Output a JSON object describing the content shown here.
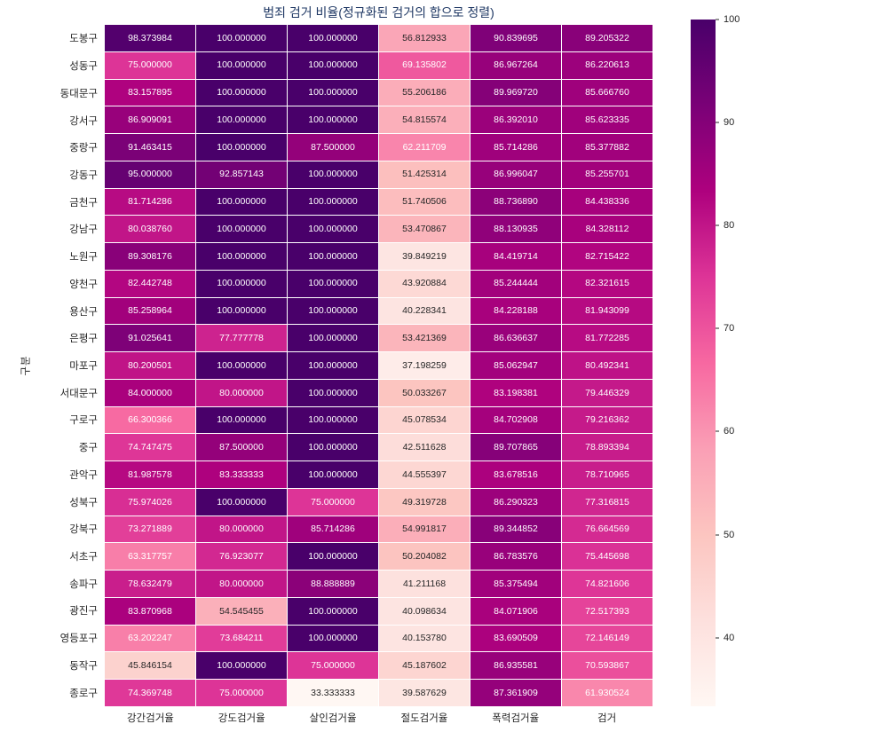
{
  "title": "범죄 검거 비율(정규화된 검거의 합으로 정렬)",
  "ylabel": "구분",
  "colors": {
    "title": "#1f3864",
    "annotation_dark": "#262626",
    "annotation_light": "#ffffff",
    "grid_line": "#ffffff",
    "colormap_stops": [
      "#fff7f3",
      "#fde0dd",
      "#fcc5c0",
      "#fa9fb5",
      "#f768a1",
      "#dd3497",
      "#ae017e",
      "#7a0177",
      "#49006a"
    ]
  },
  "chart_data": {
    "type": "heatmap",
    "title": "범죄 검거 비율(정규화된 검거의 합으로 정렬)",
    "xlabel": "",
    "ylabel": "구분",
    "colormap": "RdPu",
    "vmin": 33.333333,
    "vmax": 100,
    "annotation_decimals": 6,
    "legend_position": "right-colorbar",
    "colorbar_ticks": [
      40,
      50,
      60,
      70,
      80,
      90,
      100
    ],
    "columns": [
      "강간검거율",
      "강도검거율",
      "살인검거율",
      "절도검거율",
      "폭력검거율",
      "검거"
    ],
    "rows": [
      "도봉구",
      "성동구",
      "동대문구",
      "강서구",
      "중랑구",
      "강동구",
      "금천구",
      "강남구",
      "노원구",
      "양천구",
      "용산구",
      "은평구",
      "마포구",
      "서대문구",
      "구로구",
      "중구",
      "관악구",
      "성북구",
      "강북구",
      "서초구",
      "송파구",
      "광진구",
      "영등포구",
      "동작구",
      "종로구"
    ],
    "values": [
      [
        98.373984,
        100.0,
        100.0,
        56.812933,
        90.839695,
        89.205322
      ],
      [
        75.0,
        100.0,
        100.0,
        69.135802,
        86.967264,
        86.220613
      ],
      [
        83.157895,
        100.0,
        100.0,
        55.206186,
        89.96972,
        85.66676
      ],
      [
        86.909091,
        100.0,
        100.0,
        54.815574,
        86.39201,
        85.623335
      ],
      [
        91.463415,
        100.0,
        87.5,
        62.211709,
        85.714286,
        85.377882
      ],
      [
        95.0,
        92.857143,
        100.0,
        51.425314,
        86.996047,
        85.255701
      ],
      [
        81.714286,
        100.0,
        100.0,
        51.740506,
        88.73689,
        84.438336
      ],
      [
        80.03876,
        100.0,
        100.0,
        53.470867,
        88.130935,
        84.328112
      ],
      [
        89.308176,
        100.0,
        100.0,
        39.849219,
        84.419714,
        82.715422
      ],
      [
        82.442748,
        100.0,
        100.0,
        43.920884,
        85.244444,
        82.321615
      ],
      [
        85.258964,
        100.0,
        100.0,
        40.228341,
        84.228188,
        81.943099
      ],
      [
        91.025641,
        77.777778,
        100.0,
        53.421369,
        86.636637,
        81.772285
      ],
      [
        80.200501,
        100.0,
        100.0,
        37.198259,
        85.062947,
        80.492341
      ],
      [
        84.0,
        80.0,
        100.0,
        50.033267,
        83.198381,
        79.446329
      ],
      [
        66.300366,
        100.0,
        100.0,
        45.078534,
        84.702908,
        79.216362
      ],
      [
        74.747475,
        87.5,
        100.0,
        42.511628,
        89.707865,
        78.893394
      ],
      [
        81.987578,
        83.333333,
        100.0,
        44.555397,
        83.678516,
        78.710965
      ],
      [
        75.974026,
        100.0,
        75.0,
        49.319728,
        86.290323,
        77.316815
      ],
      [
        73.271889,
        80.0,
        85.714286,
        54.991817,
        89.344852,
        76.664569
      ],
      [
        63.317757,
        76.923077,
        100.0,
        50.204082,
        86.783576,
        75.445698
      ],
      [
        78.632479,
        80.0,
        88.888889,
        41.211168,
        85.375494,
        74.821606
      ],
      [
        83.870968,
        54.545455,
        100.0,
        40.098634,
        84.071906,
        72.517393
      ],
      [
        63.202247,
        73.684211,
        100.0,
        40.15378,
        83.690509,
        72.146149
      ],
      [
        45.846154,
        100.0,
        75.0,
        45.187602,
        86.935581,
        70.593867
      ],
      [
        74.369748,
        75.0,
        33.333333,
        39.587629,
        87.361909,
        61.930524
      ]
    ]
  }
}
